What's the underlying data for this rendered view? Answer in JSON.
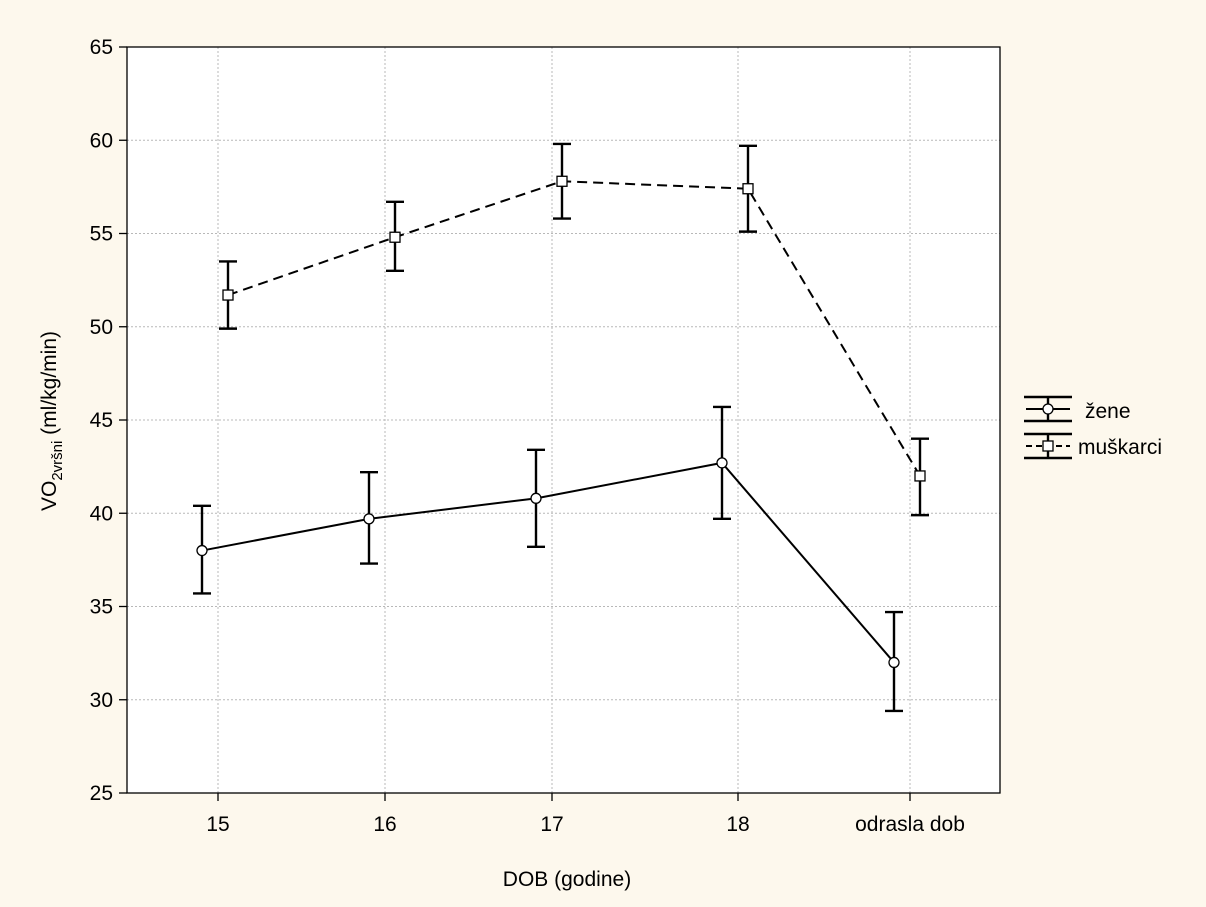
{
  "chart_data": {
    "type": "line",
    "title": "",
    "xlabel": "DOB (godine)",
    "ylabel": {
      "main": "VO",
      "subscript": "2vršni",
      "unit": " (ml/kg/min)"
    },
    "categories": [
      "15",
      "16",
      "17",
      "18",
      "odrasla dob"
    ],
    "ylim": [
      25,
      65
    ],
    "yticks": [
      25,
      30,
      35,
      40,
      45,
      50,
      55,
      60,
      65
    ],
    "grid": true,
    "error_bars": true,
    "legend_position": "right",
    "series": [
      {
        "name": "žene",
        "marker": "circle",
        "line_style": "solid",
        "values": [
          38.0,
          39.7,
          40.8,
          42.7,
          32.0
        ],
        "lower": [
          35.7,
          37.3,
          38.2,
          39.7,
          29.4
        ],
        "upper": [
          40.4,
          42.2,
          43.4,
          45.7,
          34.7
        ]
      },
      {
        "name": "muškarci",
        "marker": "square",
        "line_style": "dashed",
        "values": [
          51.7,
          54.8,
          57.8,
          57.4,
          42.0
        ],
        "lower": [
          49.9,
          53.0,
          55.8,
          55.1,
          39.9
        ],
        "upper": [
          53.5,
          56.7,
          59.8,
          59.7,
          44.0
        ]
      }
    ]
  }
}
